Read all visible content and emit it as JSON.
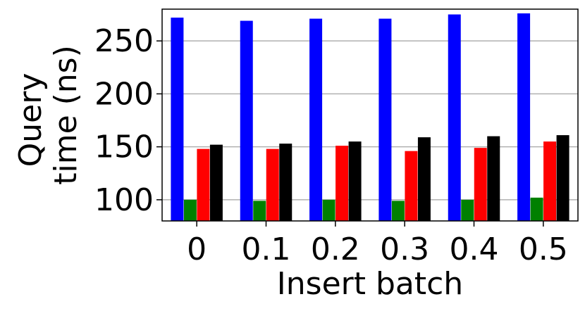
{
  "chart_data": {
    "type": "bar",
    "title": "",
    "xlabel": "Insert batch",
    "ylabel_lines": [
      "Query",
      "time (ns)"
    ],
    "categories": [
      "0",
      "0.1",
      "0.2",
      "0.3",
      "0.4",
      "0.5"
    ],
    "ylim": [
      80,
      280
    ],
    "yticks": [
      100,
      150,
      200,
      250
    ],
    "grid": "y",
    "legend": "none",
    "series": [
      {
        "color": "#0000ff",
        "values": [
          272,
          269,
          271,
          271,
          275,
          276
        ]
      },
      {
        "color": "#008000",
        "values": [
          100,
          99,
          100,
          99,
          100,
          102
        ]
      },
      {
        "color": "#ff0000",
        "values": [
          148,
          148,
          151,
          146,
          149,
          155
        ]
      },
      {
        "color": "#000000",
        "values": [
          152,
          153,
          155,
          159,
          160,
          161
        ]
      }
    ]
  }
}
